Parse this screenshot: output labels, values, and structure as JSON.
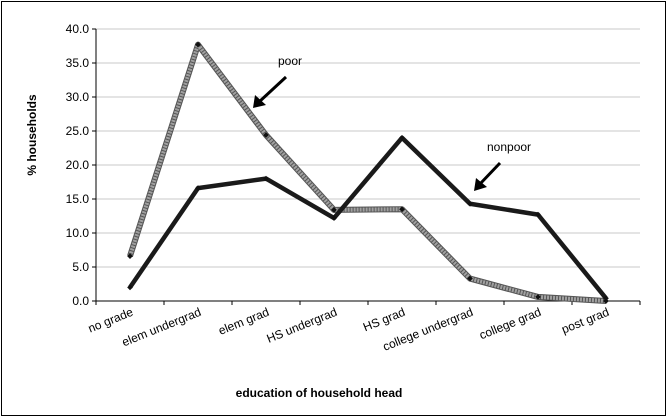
{
  "chart_data": {
    "type": "line",
    "xlabel": "education of household head",
    "ylabel": "% households",
    "ylim": [
      0,
      40
    ],
    "yticks": [
      "0.0",
      "5.0",
      "10.0",
      "15.0",
      "20.0",
      "25.0",
      "30.0",
      "35.0",
      "40.0"
    ],
    "grid": true,
    "categories": [
      "no grade",
      "elem undergrad",
      "elem grad",
      "HS undergrad",
      "HS grad",
      "college undergrad",
      "college grad",
      "post grad"
    ],
    "series": [
      {
        "name": "poor",
        "values": [
          6.6,
          37.7,
          24.4,
          13.4,
          13.5,
          3.3,
          0.6,
          0.0
        ],
        "color": "#a0a0a0"
      },
      {
        "name": "nonpoor",
        "values": [
          2.0,
          16.6,
          18.0,
          12.2,
          24.0,
          14.3,
          12.7,
          0.4
        ],
        "color": "#1a1a1a"
      }
    ],
    "annotations": [
      {
        "text": "poor"
      },
      {
        "text": "nonpoor"
      }
    ]
  }
}
